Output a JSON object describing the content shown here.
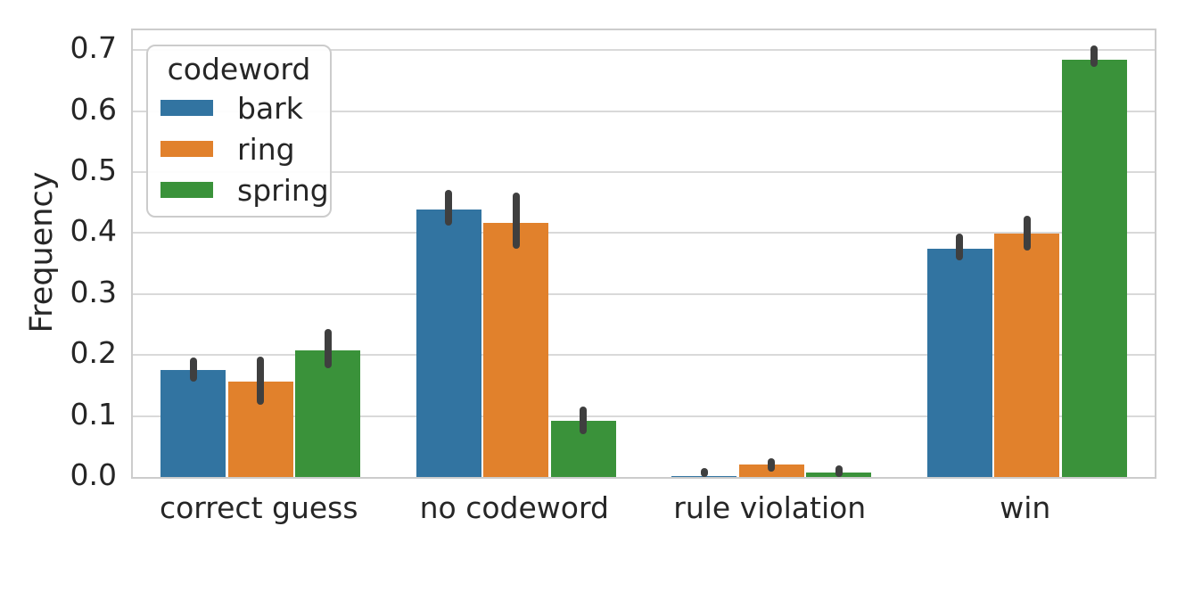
{
  "chart_data": {
    "type": "bar",
    "title": "",
    "xlabel": "",
    "ylabel": "Frequency",
    "categories": [
      "correct guess",
      "no codeword",
      "rule violation",
      "win"
    ],
    "series": [
      {
        "name": "bark",
        "color": "#3274a1",
        "values": [
          0.176,
          0.438,
          0.002,
          0.374
        ],
        "ci_low": [
          0.157,
          0.413,
          0.0,
          0.355
        ],
        "ci_high": [
          0.196,
          0.471,
          0.015,
          0.399
        ]
      },
      {
        "name": "ring",
        "color": "#e1812c",
        "values": [
          0.156,
          0.416,
          0.021,
          0.399
        ],
        "ci_low": [
          0.118,
          0.375,
          0.009,
          0.372
        ],
        "ci_high": [
          0.198,
          0.467,
          0.031,
          0.428
        ]
      },
      {
        "name": "spring",
        "color": "#3a923a",
        "values": [
          0.207,
          0.092,
          0.007,
          0.684
        ],
        "ci_low": [
          0.178,
          0.07,
          0.0,
          0.672
        ],
        "ci_high": [
          0.242,
          0.115,
          0.019,
          0.707
        ]
      }
    ],
    "legend": {
      "title": "codeword",
      "position": "upper left"
    },
    "ylim": [
      0,
      0.7325
    ],
    "yticks": [
      "0.0",
      "0.1",
      "0.2",
      "0.3",
      "0.4",
      "0.5",
      "0.6",
      "0.7"
    ],
    "ytick_values": [
      0.0,
      0.1,
      0.2,
      0.3,
      0.4,
      0.5,
      0.6,
      0.7
    ],
    "grid": true,
    "colors": {
      "error_bar": "#3f3f3f",
      "grid_line": "#d9d9d9",
      "axes_border": "#cccccc",
      "text": "#262626",
      "background": "#ffffff"
    }
  }
}
